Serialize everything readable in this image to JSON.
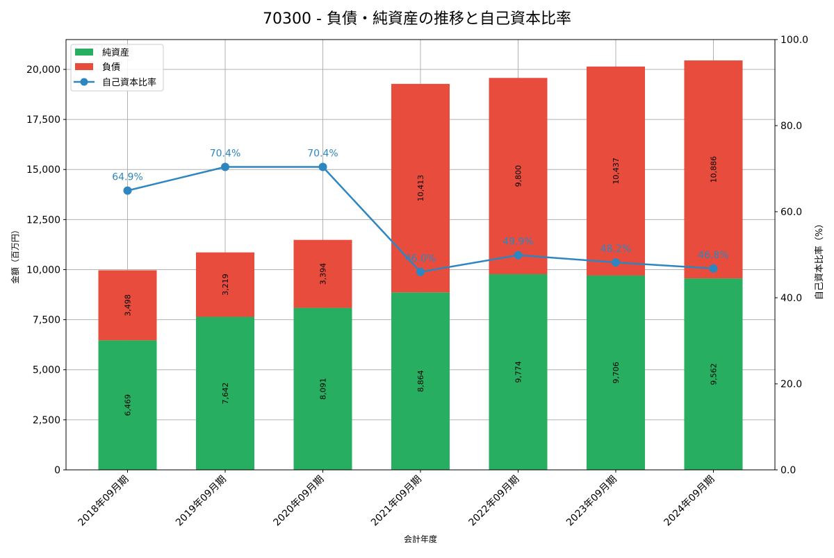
{
  "chart_data": {
    "type": "bar",
    "title": "70300 - 負債・純資産の推移と自己資本比率",
    "xlabel": "会計年度",
    "ylabel": "金額（百万円）",
    "y2label": "自己資本比率（%）",
    "categories": [
      "2018年09月期",
      "2019年09月期",
      "2020年09月期",
      "2021年09月期",
      "2022年09月期",
      "2023年09月期",
      "2024年09月期"
    ],
    "series": [
      {
        "name": "純資産",
        "kind": "bar",
        "color": "#27ae60",
        "values": [
          6469,
          7642,
          8091,
          8864,
          9774,
          9706,
          9562
        ],
        "labels": [
          "6,469",
          "7,642",
          "8,091",
          "8,864",
          "9,774",
          "9,706",
          "9,562"
        ]
      },
      {
        "name": "負債",
        "kind": "bar",
        "color": "#e74c3c",
        "values": [
          3498,
          3219,
          3394,
          10413,
          9800,
          10437,
          10886
        ],
        "labels": [
          "3,498",
          "3,219",
          "3,394",
          "10,413",
          "9,800",
          "10,437",
          "10,886"
        ]
      },
      {
        "name": "自己資本比率",
        "kind": "line",
        "axis": "right",
        "color": "#2e86c1",
        "values": [
          64.9,
          70.4,
          70.4,
          46.0,
          49.9,
          48.2,
          46.8
        ],
        "labels": [
          "64.9%",
          "70.4%",
          "70.4%",
          "46.0%",
          "49.9%",
          "48.2%",
          "46.8%"
        ]
      }
    ],
    "ylim": [
      0,
      21490
    ],
    "y2lim": [
      0,
      100
    ],
    "yticks": [
      0,
      2500,
      5000,
      7500,
      10000,
      12500,
      15000,
      17500,
      20000
    ],
    "ytick_labels": [
      "0",
      "2,500",
      "5,000",
      "7,500",
      "10,000",
      "12,500",
      "15,000",
      "17,500",
      "20,000"
    ],
    "y2ticks": [
      0,
      20,
      40,
      60,
      80,
      100
    ],
    "y2tick_labels": [
      "0.0",
      "20.0",
      "40.0",
      "60.0",
      "80.0",
      "100.0"
    ],
    "grid": true,
    "legend": "top-left"
  }
}
